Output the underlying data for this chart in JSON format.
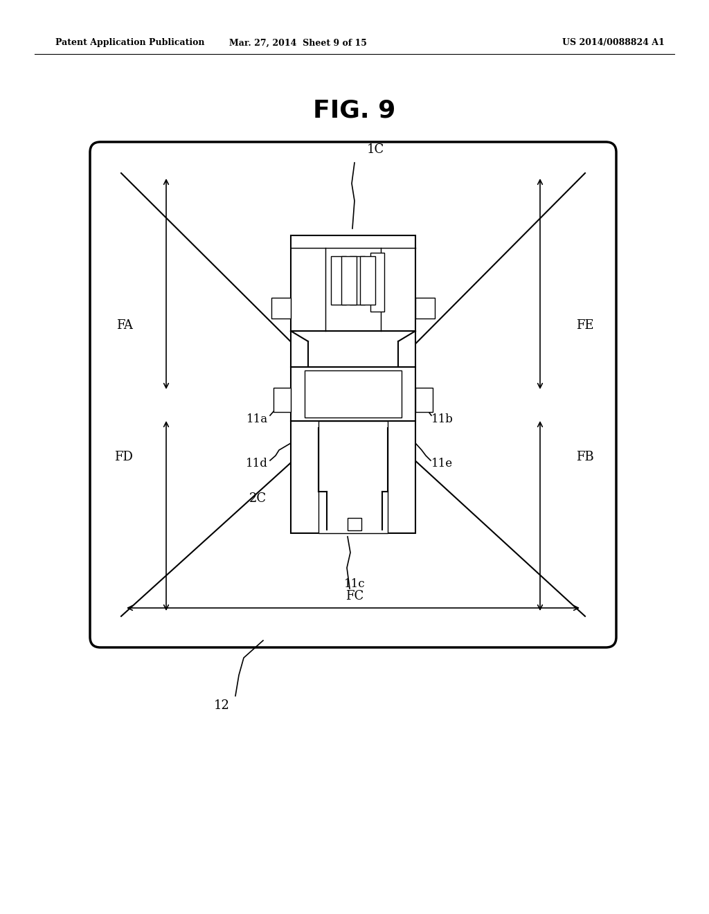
{
  "bg_color": "#ffffff",
  "title": "FIG. 9",
  "header_left": "Patent Application Publication",
  "header_center": "Mar. 27, 2014  Sheet 9 of 15",
  "header_right": "US 2014/0088824 A1",
  "label_1C": "1C",
  "label_2C": "2C",
  "label_12": "12",
  "label_FA": "FA",
  "label_FB": "FB",
  "label_FC": "FC",
  "label_FD": "FD",
  "label_FE": "FE",
  "label_11a": "11a",
  "label_11b": "11b",
  "label_11c": "11c",
  "label_11d": "11d",
  "label_11e": "11e",
  "line_color": "#000000"
}
